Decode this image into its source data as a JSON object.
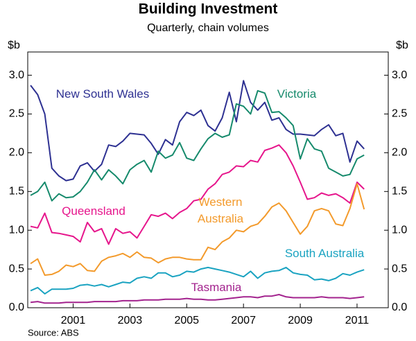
{
  "chart_data": {
    "type": "line",
    "title": "Building Investment",
    "subtitle": "Quarterly, chain volumes",
    "ylabel": "$b",
    "y2label": "$b",
    "source": "Source: ABS",
    "x": [
      1999.5,
      1999.75,
      2000,
      2000.25,
      2000.5,
      2000.75,
      2001,
      2001.25,
      2001.5,
      2001.75,
      2002,
      2002.25,
      2002.5,
      2002.75,
      2003,
      2003.25,
      2003.5,
      2003.75,
      2004,
      2004.25,
      2004.5,
      2004.75,
      2005,
      2005.25,
      2005.5,
      2005.75,
      2006,
      2006.25,
      2006.5,
      2006.75,
      2007,
      2007.25,
      2007.5,
      2007.75,
      2008,
      2008.25,
      2008.5,
      2008.75,
      2009,
      2009.25,
      2009.5,
      2009.75,
      2010,
      2010.25,
      2010.5,
      2010.75,
      2011,
      2011.25
    ],
    "xlim": [
      1999.4,
      2012.1
    ],
    "xticks": [
      2001,
      2003,
      2005,
      2007,
      2009,
      2011
    ],
    "ylim": [
      0,
      3.3
    ],
    "yticks": [
      {
        "value": 0,
        "label": "0.0"
      },
      {
        "value": 0.5,
        "label": "0.5"
      },
      {
        "value": 1,
        "label": "1.0"
      },
      {
        "value": 1.5,
        "label": "1.5"
      },
      {
        "value": 2,
        "label": "2.0"
      },
      {
        "value": 2.5,
        "label": "2.5"
      },
      {
        "value": 3,
        "label": "3.0"
      }
    ],
    "series": [
      {
        "name": "New South Wales",
        "color": "#2e3192",
        "values": [
          2.87,
          2.75,
          2.5,
          1.8,
          1.7,
          1.64,
          1.66,
          1.83,
          1.87,
          1.76,
          1.85,
          2.1,
          2.08,
          2.15,
          2.25,
          2.24,
          2.23,
          2.12,
          1.98,
          2.17,
          2.1,
          2.4,
          2.52,
          2.48,
          2.55,
          2.35,
          2.28,
          2.45,
          2.78,
          2.4,
          2.93,
          2.65,
          2.55,
          2.65,
          2.42,
          2.45,
          2.3,
          2.24,
          2.24,
          2.23,
          2.22,
          2.3,
          2.36,
          2.22,
          2.25,
          1.88,
          2.15,
          2.05
        ]
      },
      {
        "name": "Victoria",
        "color": "#168a6c",
        "values": [
          1.45,
          1.5,
          1.62,
          1.38,
          1.47,
          1.42,
          1.43,
          1.5,
          1.62,
          1.78,
          1.65,
          1.78,
          1.7,
          1.6,
          1.78,
          1.85,
          1.9,
          1.75,
          2.02,
          1.93,
          1.97,
          2.13,
          1.93,
          1.9,
          2.05,
          2.18,
          2.25,
          2.2,
          2.23,
          2.63,
          2.6,
          2.5,
          2.8,
          2.77,
          2.52,
          2.53,
          2.45,
          2.35,
          1.92,
          2.18,
          2.05,
          2.02,
          1.8,
          1.75,
          1.7,
          1.72,
          1.92,
          1.97
        ]
      },
      {
        "name": "Queensland",
        "color": "#e6168c",
        "values": [
          1.05,
          1.03,
          1.22,
          0.97,
          0.96,
          0.94,
          0.92,
          0.85,
          1.1,
          0.98,
          1.02,
          0.82,
          1.02,
          0.96,
          0.98,
          0.9,
          1.05,
          1.2,
          1.18,
          1.22,
          1.15,
          1.23,
          1.28,
          1.38,
          1.4,
          1.53,
          1.6,
          1.72,
          1.75,
          1.83,
          1.82,
          1.9,
          1.88,
          2.03,
          2.06,
          2.1,
          2.0,
          1.83,
          1.62,
          1.4,
          1.42,
          1.48,
          1.45,
          1.47,
          1.42,
          1.35,
          1.62,
          1.53
        ]
      },
      {
        "name": "Western Australia",
        "color": "#f39a2b",
        "values": [
          0.57,
          0.63,
          0.42,
          0.43,
          0.47,
          0.55,
          0.53,
          0.57,
          0.48,
          0.47,
          0.6,
          0.65,
          0.67,
          0.7,
          0.65,
          0.72,
          0.65,
          0.64,
          0.58,
          0.63,
          0.65,
          0.65,
          0.63,
          0.62,
          0.62,
          0.78,
          0.75,
          0.85,
          0.9,
          1.0,
          0.98,
          1.05,
          1.08,
          1.18,
          1.3,
          1.35,
          1.25,
          1.1,
          0.95,
          1.05,
          1.25,
          1.28,
          1.25,
          1.08,
          1.06,
          1.28,
          1.6,
          1.27
        ]
      },
      {
        "name": "South Australia",
        "color": "#1aa3c1",
        "values": [
          0.22,
          0.26,
          0.18,
          0.24,
          0.24,
          0.24,
          0.25,
          0.29,
          0.3,
          0.28,
          0.3,
          0.27,
          0.3,
          0.33,
          0.32,
          0.38,
          0.4,
          0.38,
          0.45,
          0.45,
          0.4,
          0.42,
          0.47,
          0.46,
          0.5,
          0.52,
          0.5,
          0.48,
          0.46,
          0.43,
          0.4,
          0.47,
          0.38,
          0.45,
          0.47,
          0.48,
          0.52,
          0.45,
          0.43,
          0.42,
          0.36,
          0.37,
          0.35,
          0.38,
          0.44,
          0.42,
          0.46,
          0.49
        ]
      },
      {
        "name": "Tasmania",
        "color": "#a3238e",
        "values": [
          0.07,
          0.08,
          0.06,
          0.06,
          0.06,
          0.07,
          0.07,
          0.07,
          0.07,
          0.08,
          0.08,
          0.08,
          0.08,
          0.09,
          0.09,
          0.09,
          0.1,
          0.1,
          0.1,
          0.11,
          0.11,
          0.11,
          0.12,
          0.11,
          0.11,
          0.1,
          0.1,
          0.11,
          0.12,
          0.13,
          0.14,
          0.14,
          0.13,
          0.15,
          0.15,
          0.17,
          0.14,
          0.13,
          0.13,
          0.13,
          0.13,
          0.14,
          0.13,
          0.13,
          0.13,
          0.12,
          0.13,
          0.14
        ]
      }
    ]
  }
}
